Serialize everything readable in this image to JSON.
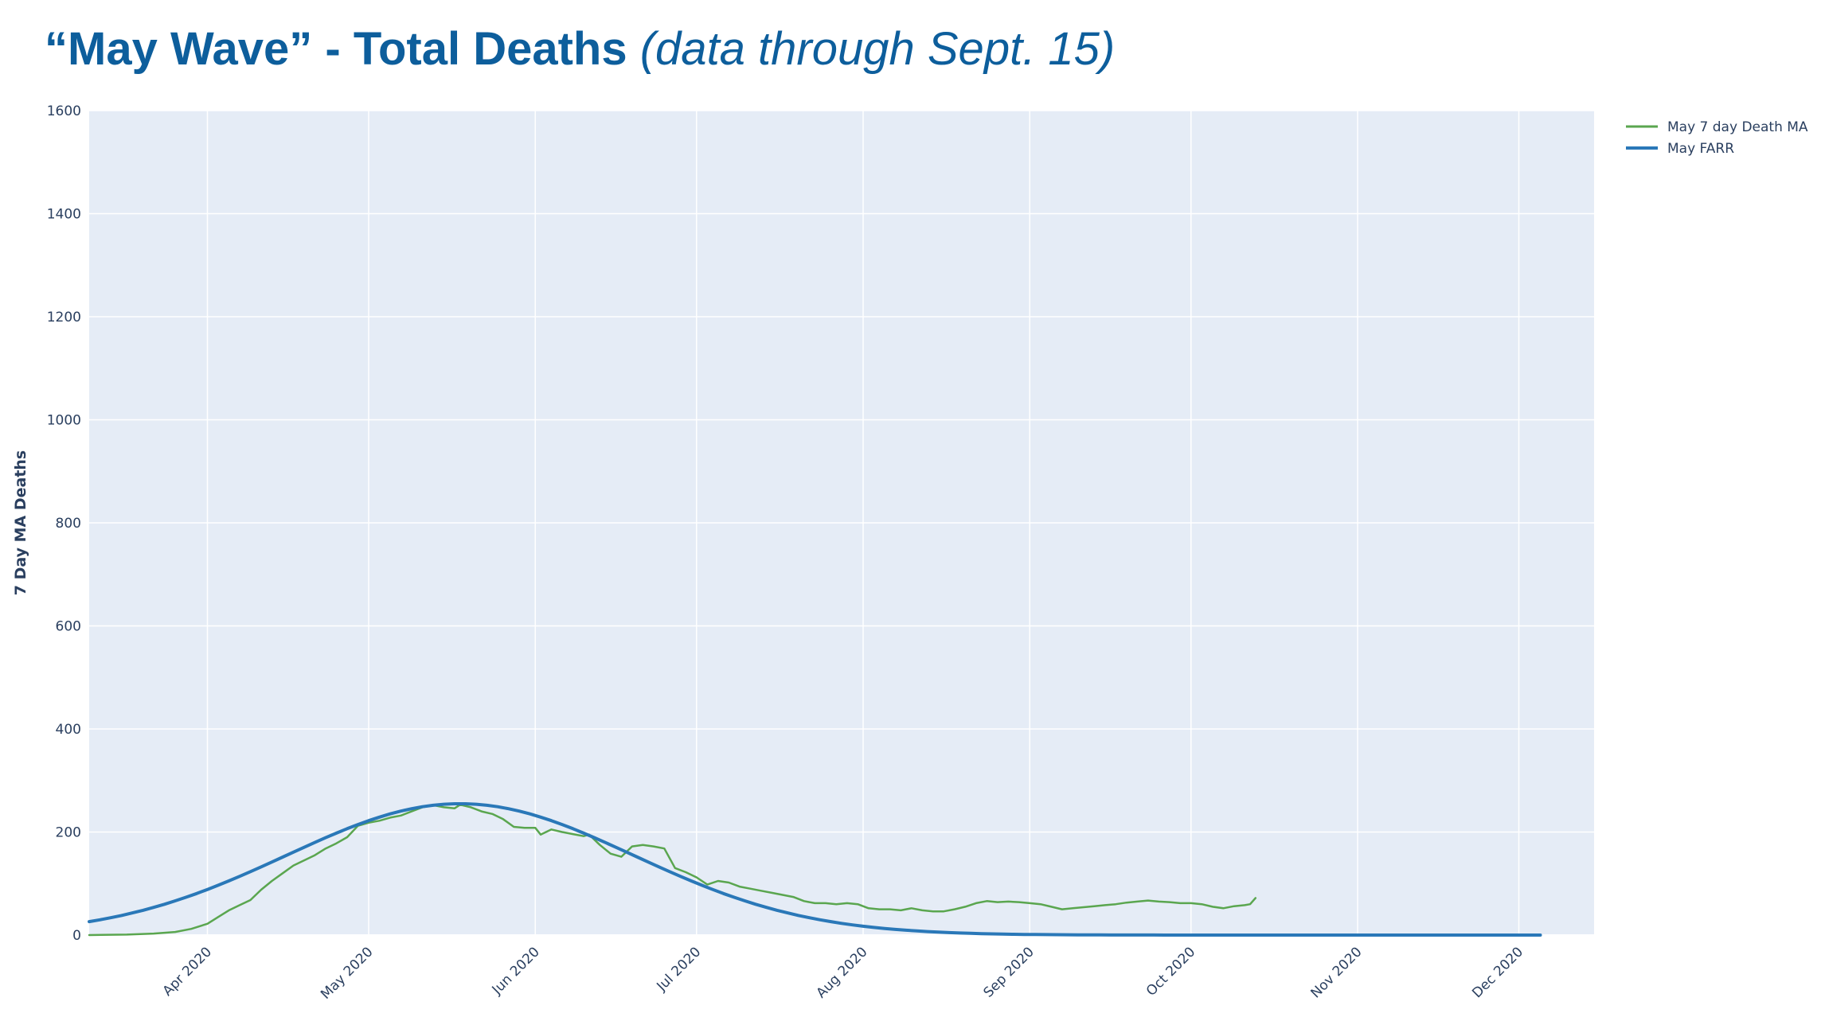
{
  "title": {
    "main": "“May Wave” - Total Deaths",
    "sub": "(data through Sept. 15)"
  },
  "chart_data": {
    "type": "line",
    "title": "“May Wave” - Total Deaths (data through Sept. 15)",
    "ylabel": "7 Day MA Deaths",
    "xlabel": "",
    "ylim": [
      0,
      1600
    ],
    "xlim": [
      "2020-03-10",
      "2020-12-15"
    ],
    "grid": true,
    "legend_position": "top-right",
    "yticks": [
      0,
      200,
      400,
      600,
      800,
      1000,
      1200,
      1400,
      1600
    ],
    "xticks": [
      {
        "date": "2020-04-01",
        "label": "Apr 2020"
      },
      {
        "date": "2020-05-01",
        "label": "May 2020"
      },
      {
        "date": "2020-06-01",
        "label": "Jun 2020"
      },
      {
        "date": "2020-07-01",
        "label": "Jul 2020"
      },
      {
        "date": "2020-08-01",
        "label": "Aug 2020"
      },
      {
        "date": "2020-09-01",
        "label": "Sep 2020"
      },
      {
        "date": "2020-10-01",
        "label": "Oct 2020"
      },
      {
        "date": "2020-11-01",
        "label": "Nov 2020"
      },
      {
        "date": "2020-12-01",
        "label": "Dec 2020"
      }
    ],
    "series": [
      {
        "name": "May 7 day Death MA",
        "color": "#5aa64f",
        "points": [
          [
            "2020-03-10",
            0
          ],
          [
            "2020-03-17",
            1
          ],
          [
            "2020-03-22",
            3
          ],
          [
            "2020-03-26",
            6
          ],
          [
            "2020-03-29",
            12
          ],
          [
            "2020-04-01",
            22
          ],
          [
            "2020-04-03",
            35
          ],
          [
            "2020-04-05",
            48
          ],
          [
            "2020-04-07",
            58
          ],
          [
            "2020-04-09",
            68
          ],
          [
            "2020-04-11",
            88
          ],
          [
            "2020-04-13",
            105
          ],
          [
            "2020-04-15",
            120
          ],
          [
            "2020-04-17",
            135
          ],
          [
            "2020-04-19",
            145
          ],
          [
            "2020-04-21",
            155
          ],
          [
            "2020-04-23",
            168
          ],
          [
            "2020-04-25",
            178
          ],
          [
            "2020-04-27",
            190
          ],
          [
            "2020-04-29",
            212
          ],
          [
            "2020-05-01",
            218
          ],
          [
            "2020-05-03",
            222
          ],
          [
            "2020-05-05",
            228
          ],
          [
            "2020-05-07",
            232
          ],
          [
            "2020-05-09",
            240
          ],
          [
            "2020-05-11",
            248
          ],
          [
            "2020-05-13",
            252
          ],
          [
            "2020-05-15",
            248
          ],
          [
            "2020-05-17",
            246
          ],
          [
            "2020-05-18",
            253
          ],
          [
            "2020-05-20",
            248
          ],
          [
            "2020-05-22",
            240
          ],
          [
            "2020-05-24",
            235
          ],
          [
            "2020-05-26",
            225
          ],
          [
            "2020-05-28",
            210
          ],
          [
            "2020-05-30",
            208
          ],
          [
            "2020-06-01",
            208
          ],
          [
            "2020-06-02",
            195
          ],
          [
            "2020-06-04",
            205
          ],
          [
            "2020-06-06",
            200
          ],
          [
            "2020-06-08",
            196
          ],
          [
            "2020-06-10",
            192
          ],
          [
            "2020-06-11",
            195
          ],
          [
            "2020-06-13",
            175
          ],
          [
            "2020-06-15",
            158
          ],
          [
            "2020-06-17",
            152
          ],
          [
            "2020-06-19",
            172
          ],
          [
            "2020-06-21",
            175
          ],
          [
            "2020-06-23",
            172
          ],
          [
            "2020-06-25",
            168
          ],
          [
            "2020-06-27",
            130
          ],
          [
            "2020-06-29",
            122
          ],
          [
            "2020-07-01",
            112
          ],
          [
            "2020-07-03",
            98
          ],
          [
            "2020-07-05",
            105
          ],
          [
            "2020-07-07",
            102
          ],
          [
            "2020-07-09",
            94
          ],
          [
            "2020-07-11",
            90
          ],
          [
            "2020-07-13",
            86
          ],
          [
            "2020-07-15",
            82
          ],
          [
            "2020-07-17",
            78
          ],
          [
            "2020-07-19",
            74
          ],
          [
            "2020-07-21",
            66
          ],
          [
            "2020-07-23",
            62
          ],
          [
            "2020-07-25",
            62
          ],
          [
            "2020-07-27",
            60
          ],
          [
            "2020-07-29",
            62
          ],
          [
            "2020-07-31",
            60
          ],
          [
            "2020-08-02",
            52
          ],
          [
            "2020-08-04",
            50
          ],
          [
            "2020-08-06",
            50
          ],
          [
            "2020-08-08",
            48
          ],
          [
            "2020-08-10",
            52
          ],
          [
            "2020-08-12",
            48
          ],
          [
            "2020-08-14",
            46
          ],
          [
            "2020-08-16",
            46
          ],
          [
            "2020-08-18",
            50
          ],
          [
            "2020-08-20",
            55
          ],
          [
            "2020-08-22",
            62
          ],
          [
            "2020-08-24",
            66
          ],
          [
            "2020-08-26",
            64
          ],
          [
            "2020-08-28",
            65
          ],
          [
            "2020-08-30",
            64
          ],
          [
            "2020-09-01",
            62
          ],
          [
            "2020-09-03",
            60
          ],
          [
            "2020-09-05",
            55
          ],
          [
            "2020-09-07",
            50
          ],
          [
            "2020-09-09",
            52
          ],
          [
            "2020-09-11",
            54
          ],
          [
            "2020-09-13",
            56
          ],
          [
            "2020-09-15",
            58
          ],
          [
            "2020-09-17",
            60
          ],
          [
            "2020-09-19",
            63
          ],
          [
            "2020-09-21",
            65
          ],
          [
            "2020-09-23",
            67
          ],
          [
            "2020-09-25",
            65
          ],
          [
            "2020-09-27",
            64
          ],
          [
            "2020-09-29",
            62
          ],
          [
            "2020-10-01",
            62
          ],
          [
            "2020-10-03",
            60
          ],
          [
            "2020-10-05",
            55
          ],
          [
            "2020-10-07",
            52
          ],
          [
            "2020-10-09",
            56
          ],
          [
            "2020-10-11",
            58
          ],
          [
            "2020-10-12",
            60
          ],
          [
            "2020-10-13",
            72
          ]
        ]
      },
      {
        "name": "May FARR",
        "color": "#2a78b8",
        "gaussian": {
          "peak": 255,
          "peak_date": "2020-05-18",
          "sigma_days": 32.3,
          "start_date": "2020-03-10",
          "end_date": "2020-12-05",
          "step_days": 2
        }
      }
    ]
  }
}
